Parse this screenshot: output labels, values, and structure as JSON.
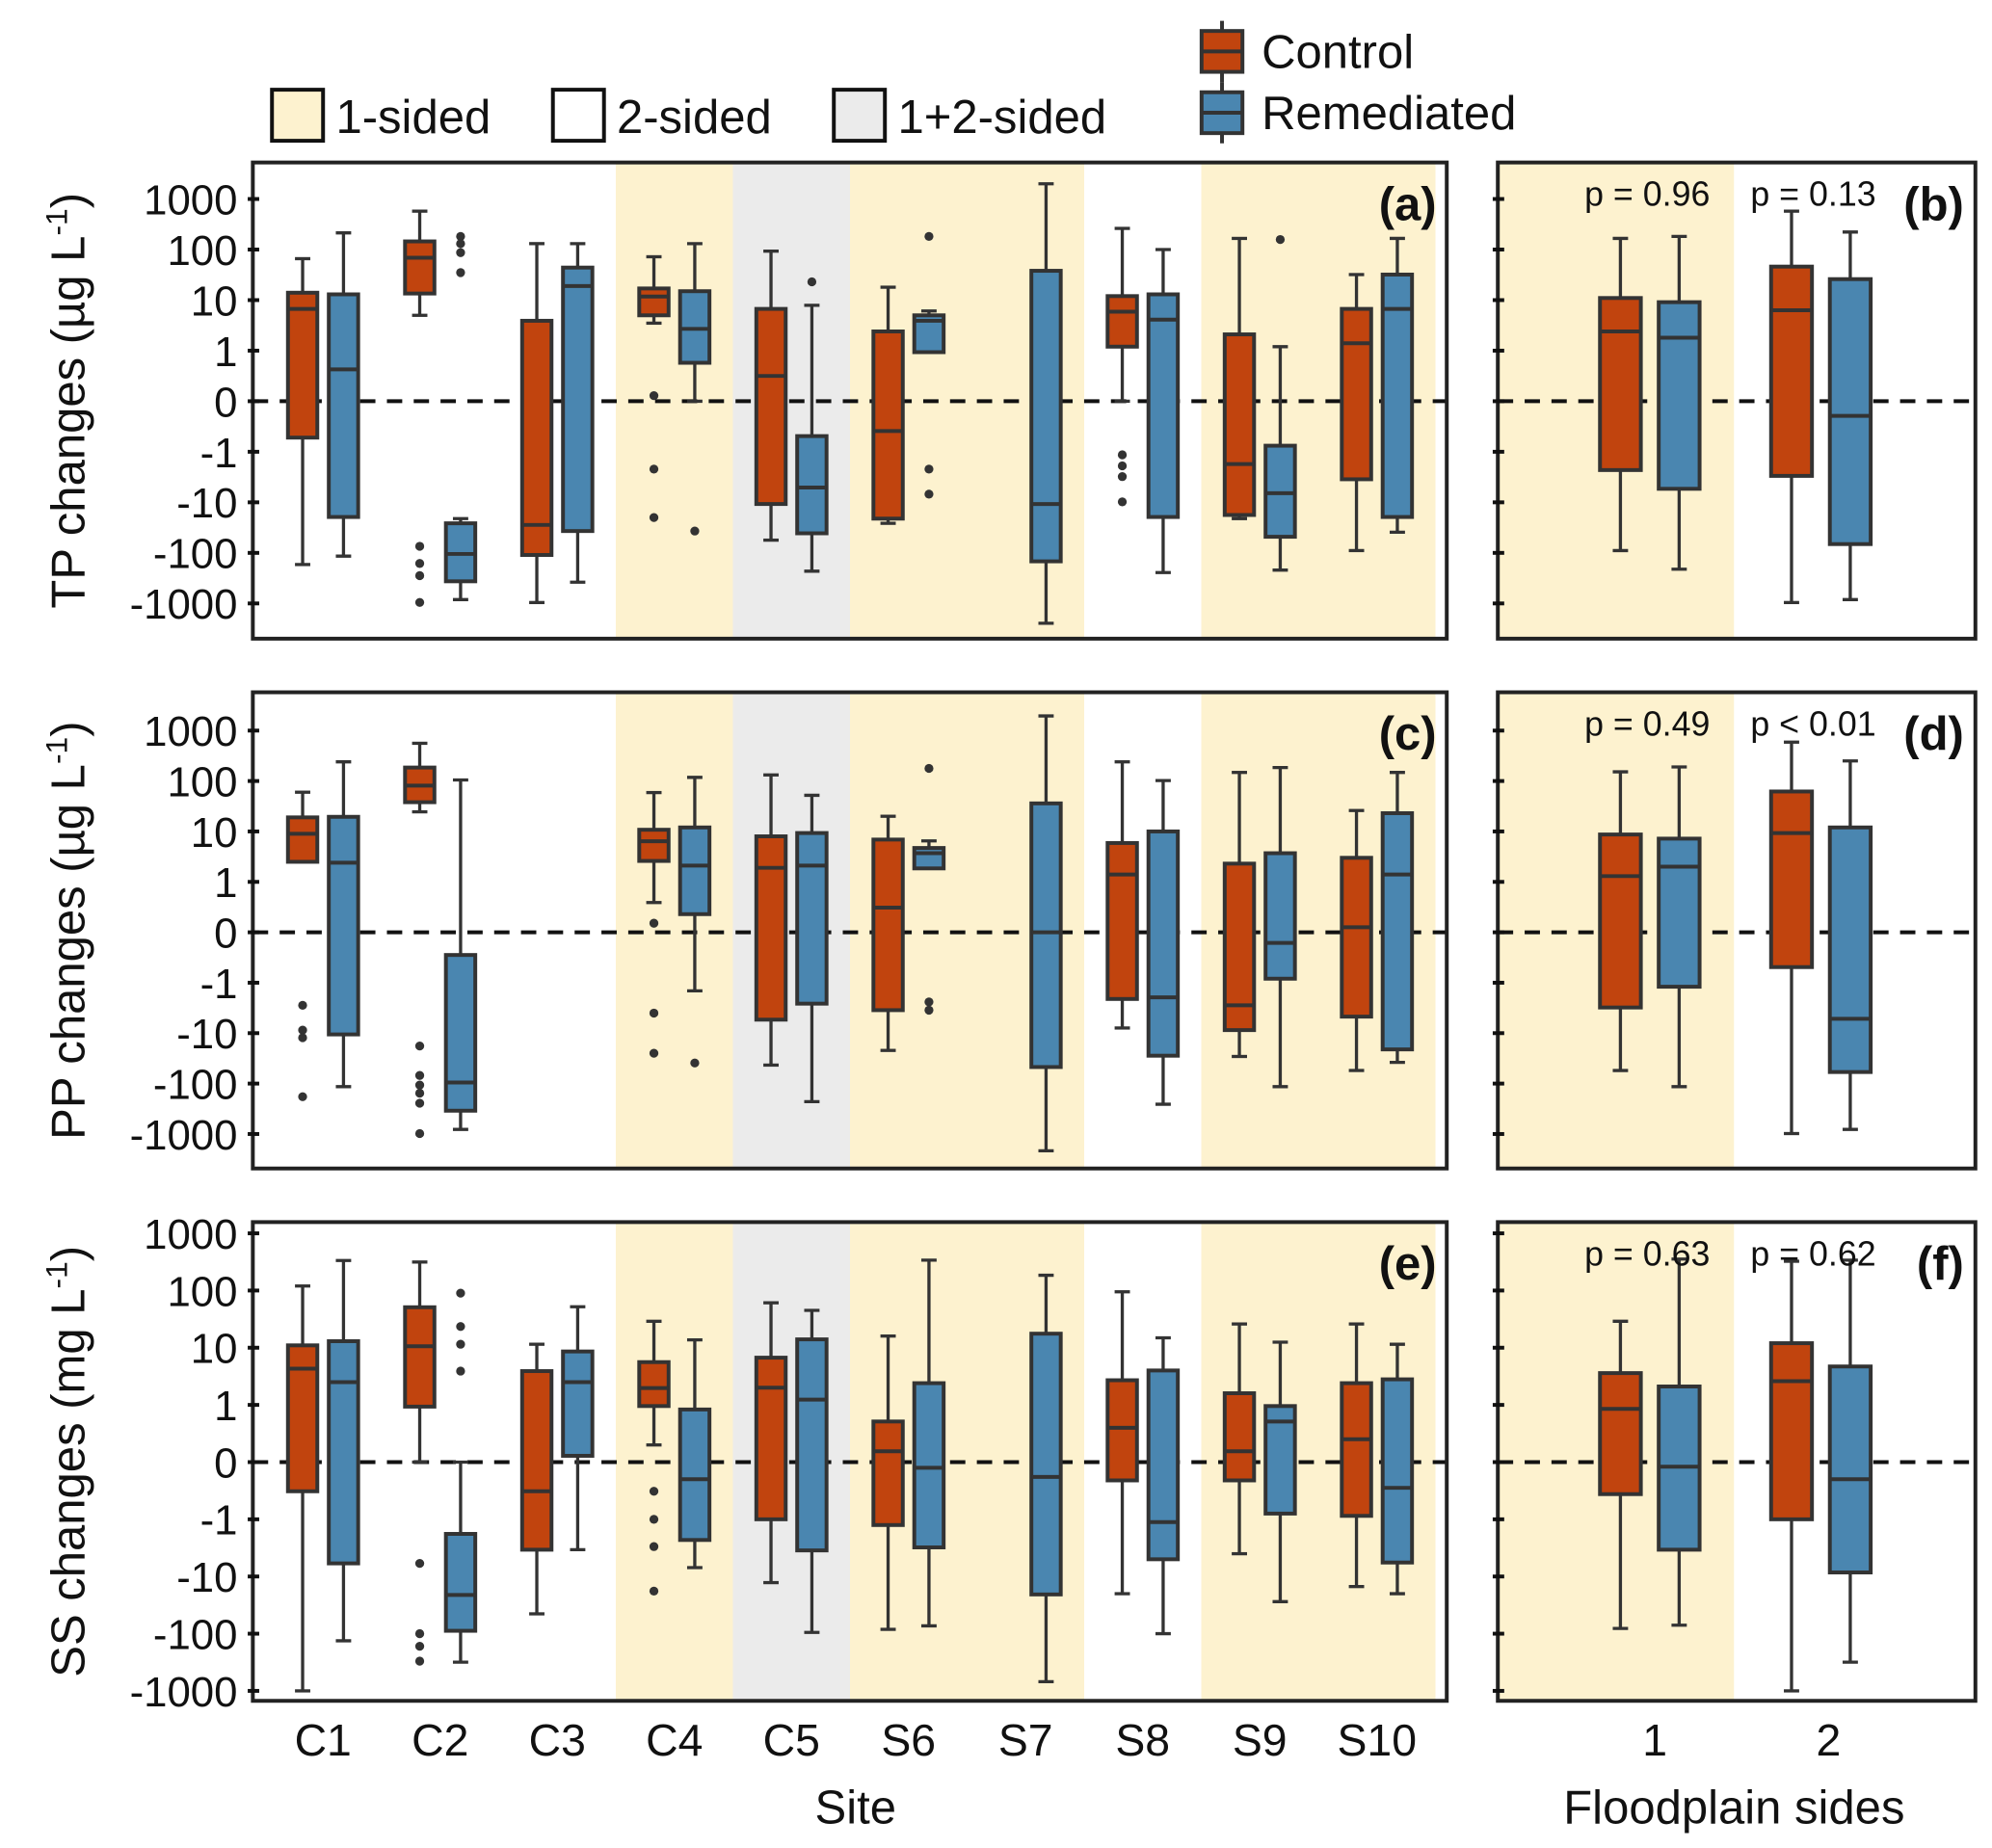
{
  "colors": {
    "control": "#c1440e",
    "remediated": "#4a86b0",
    "one_sided": "#fdf2cf",
    "two_sided": "#ffffff",
    "both_sided": "#ebebeb",
    "line": "#333333"
  },
  "legend": {
    "floodplain": [
      {
        "label": "1-sided",
        "type": "1-sided"
      },
      {
        "label": "2-sided",
        "type": "2-sided"
      },
      {
        "label": "1+2-sided",
        "type": "1+2-sided"
      }
    ],
    "treatment": [
      {
        "label": "Control",
        "key": "control"
      },
      {
        "label": "Remediated",
        "key": "remediated"
      }
    ]
  },
  "axes": {
    "site_xlabel": "Site",
    "sides_xlabel": "Floodplain sides",
    "y_ticks": [
      -1000,
      -100,
      -10,
      -1,
      0,
      1,
      10,
      100,
      1000
    ],
    "y_scale": "symlog"
  },
  "chart_data": [
    {
      "type": "box",
      "panel": "(a)",
      "ylabel": "TP changes (µg L",
      "ylabel_sup": "-1",
      "ylabel_end": ")",
      "x": [
        "C1",
        "C2",
        "C3",
        "C4",
        "C5",
        "S6",
        "S7",
        "S8",
        "S9",
        "S10"
      ],
      "site_type": [
        "2-sided",
        "2-sided",
        "2-sided",
        "1-sided",
        "1+2-sided",
        "1-sided",
        "1-sided",
        "2-sided",
        "1-sided",
        "1-sided"
      ],
      "series": [
        {
          "name": "Control",
          "key": "control",
          "boxes": [
            {
              "s": [
                -170,
                -0.72,
                6.7,
                14,
                66
              ],
              "o": []
            },
            {
              "s": [
                5,
                13.5,
                69,
                145,
                575
              ],
              "o": [
                -74,
                -162,
                -282,
                -955
              ]
            },
            {
              "s": [
                -960,
                -110,
                -28,
                3.9,
                131
              ],
              "o": []
            },
            {
              "s": [
                3.5,
                5,
                11.8,
                17,
                72
              ],
              "o": [
                0.11,
                -2.2,
                -20
              ]
            },
            {
              "s": [
                -56,
                -10.8,
                0.5,
                6.7,
                93
              ],
              "o": []
            },
            {
              "s": [
                -26,
                -21,
                -0.59,
                2.4,
                18
              ],
              "o": []
            },
            null,
            {
              "s": [
                0,
                1.2,
                5.9,
                12,
                262
              ],
              "o": [
                -1.15,
                -1.9,
                -3.1,
                -9.8
              ]
            },
            {
              "s": [
                -21,
                -17.8,
                -1.75,
                2.1,
                166
              ],
              "o": []
            },
            {
              "s": [
                -90,
                -3.5,
                1.4,
                6.7,
                32
              ],
              "o": []
            }
          ]
        },
        {
          "name": "Remediated",
          "key": "remediated",
          "boxes": [
            {
              "s": [
                -116,
                -19.5,
                0.63,
                13,
                214
              ],
              "o": []
            },
            {
              "s": [
                -840,
                -365,
                -105,
                -26,
                -21
              ],
              "o": [
                182,
                131,
                87,
                35
              ]
            },
            {
              "s": [
                -380,
                -37,
                19,
                44,
                131
              ],
              "o": []
            },
            {
              "s": [
                0,
                0.76,
                2.7,
                15,
                131
              ],
              "o": [
                -37
              ]
            },
            {
              "s": [
                -230,
                -41,
                -5.1,
                -0.69,
                7.9
              ],
              "o": [
                23
              ]
            },
            {
              "s": [
                0.97,
                0.97,
                3.9,
                5,
                6.1
              ],
              "o": [
                182,
                -2.2,
                -6.9
              ]
            },
            {
              "s": [
                -2470,
                -147,
                -10.8,
                38,
                2000
              ],
              "o": []
            },
            {
              "s": [
                -245,
                -19.5,
                4.1,
                13,
                100
              ],
              "o": []
            },
            {
              "s": [
                -219,
                -48,
                -6.6,
                -0.88,
                1.2
              ],
              "o": [
                158
              ]
            },
            {
              "s": [
                -39,
                -19.5,
                6.7,
                32,
                166
              ],
              "o": []
            }
          ]
        }
      ]
    },
    {
      "type": "box",
      "panel": "(b)",
      "x": [
        "1",
        "2"
      ],
      "site_type": [
        "1-sided",
        "2-sided"
      ],
      "p_values": [
        "p = 0.96",
        "p = 0.13"
      ],
      "series": [
        {
          "name": "Control",
          "key": "control",
          "boxes": [
            {
              "s": [
                -90,
                -2.3,
                2.4,
                11,
                166
              ],
              "o": []
            },
            {
              "s": [
                -960,
                -3,
                6.3,
                46,
                575
              ],
              "o": []
            }
          ]
        },
        {
          "name": "Remediated",
          "key": "remediated",
          "boxes": [
            {
              "s": [
                -210,
                -5.4,
                1.8,
                9.1,
                182
              ],
              "o": []
            },
            {
              "s": [
                -840,
                -67,
                -0.29,
                26,
                222
              ],
              "o": []
            }
          ]
        }
      ]
    },
    {
      "type": "box",
      "panel": "(c)",
      "ylabel": "PP changes (µg L",
      "ylabel_sup": "-1",
      "ylabel_end": ")",
      "x": [
        "C1",
        "C2",
        "C3",
        "C4",
        "C5",
        "S6",
        "S7",
        "S8",
        "S9",
        "S10"
      ],
      "site_type": [
        "2-sided",
        "2-sided",
        "2-sided",
        "1-sided",
        "1+2-sided",
        "1-sided",
        "1-sided",
        "2-sided",
        "1-sided",
        "1-sided"
      ],
      "series": [
        {
          "name": "Control",
          "key": "control",
          "boxes": [
            {
              "s": [
                2.5,
                2.5,
                9,
                19,
                60
              ],
              "o": [
                -2.8,
                -8.7,
                -12.3,
                -182
              ]
            },
            {
              "s": [
                24.5,
                38,
                81,
                185,
                560
              ],
              "o": [
                -18,
                -69,
                -107,
                -155,
                -245,
                -980
              ]
            },
            null,
            {
              "s": [
                0.59,
                2.6,
                6.4,
                10.8,
                59
              ],
              "o": [
                0.18,
                -4,
                -25
              ]
            },
            {
              "s": [
                -43,
                -5.4,
                1.9,
                8,
                132
              ],
              "o": []
            },
            {
              "s": [
                -22,
                -3.5,
                0.49,
                6.9,
                20
              ],
              "o": []
            },
            null,
            {
              "s": [
                -7.9,
                -2.1,
                1.4,
                5.9,
                240
              ],
              "o": []
            },
            {
              "s": [
                -29,
                -8.7,
                -2.8,
                2.3,
                148
              ],
              "o": []
            },
            {
              "s": [
                -55,
                -4.7,
                0.1,
                3,
                26
              ],
              "o": []
            }
          ]
        },
        {
          "name": "Remediated",
          "key": "remediated",
          "boxes": [
            {
              "s": [
                -115,
                -10.6,
                2.4,
                19.5,
                240
              ],
              "o": []
            },
            {
              "s": [
                -810,
                -345,
                -95,
                -0.45,
                105
              ],
              "o": []
            },
            null,
            {
              "s": [
                -1.45,
                0.36,
                2.1,
                12,
                118
              ],
              "o": [
                -39
              ]
            },
            {
              "s": [
                -228,
                -2.6,
                2.1,
                9.3,
                52
              ],
              "o": []
            },
            {
              "s": [
                1.85,
                1.85,
                3.7,
                4.7,
                6.5
              ],
              "o": [
                178,
                -2.4,
                -3.5
              ]
            },
            {
              "s": [
                -2150,
                -47,
                0,
                36,
                1950
              ],
              "o": []
            },
            {
              "s": [
                -257,
                -28,
                -1.95,
                10,
                102
              ],
              "o": []
            },
            {
              "s": [
                -115,
                -0.92,
                -0.21,
                3.7,
                185
              ],
              "o": []
            },
            {
              "s": [
                -38,
                -21,
                1.4,
                23,
                148
              ],
              "o": []
            }
          ]
        }
      ]
    },
    {
      "type": "box",
      "panel": "(d)",
      "x": [
        "1",
        "2"
      ],
      "site_type": [
        "1-sided",
        "2-sided"
      ],
      "p_values": [
        "p = 0.49",
        "p < 0.01"
      ],
      "series": [
        {
          "name": "Control",
          "key": "control",
          "boxes": [
            {
              "s": [
                -55,
                -3.1,
                1.3,
                8.7,
                152
              ],
              "o": []
            },
            {
              "s": [
                -980,
                -0.69,
                9.3,
                62,
                590
              ],
              "o": []
            }
          ]
        },
        {
          "name": "Remediated",
          "key": "remediated",
          "boxes": [
            {
              "s": [
                -115,
                -1.2,
                2.0,
                7.2,
                190
              ],
              "o": []
            },
            {
              "s": [
                -810,
                -59,
                -5.2,
                12,
                250
              ],
              "o": []
            }
          ]
        }
      ]
    },
    {
      "type": "box",
      "panel": "(e)",
      "ylabel": "SS changes (mg L",
      "ylabel_sup": "-1",
      "ylabel_end": ")",
      "x": [
        "C1",
        "C2",
        "C3",
        "C4",
        "C5",
        "S6",
        "S7",
        "S8",
        "S9",
        "S10"
      ],
      "site_type": [
        "2-sided",
        "2-sided",
        "2-sided",
        "1-sided",
        "1+2-sided",
        "1-sided",
        "1-sided",
        "2-sided",
        "1-sided",
        "1-sided"
      ],
      "series": [
        {
          "name": "Control",
          "key": "control",
          "boxes": [
            {
              "s": [
                -1000,
                -0.51,
                4.3,
                11,
                120
              ],
              "o": []
            },
            {
              "s": [
                0,
                0.97,
                10.6,
                51,
                315
              ],
              "o": [
                -5.9,
                -100,
                -166,
                -302
              ]
            },
            {
              "s": [
                -45,
                -3.4,
                -0.51,
                3.9,
                11.5
              ],
              "o": []
            },
            {
              "s": [
                0.3,
                0.98,
                1.97,
                5.6,
                29
              ],
              "o": [
                -0.51,
                -1,
                -3,
                -18
              ]
            },
            {
              "s": [
                -12.8,
                -1,
                2,
                6.7,
                61
              ],
              "o": []
            },
            {
              "s": [
                -84,
                -1.26,
                0.19,
                0.71,
                16
              ],
              "o": []
            },
            null,
            {
              "s": [
                -20,
                -0.32,
                0.6,
                2.7,
                95
              ],
              "o": []
            },
            {
              "s": [
                -4,
                -0.32,
                0.19,
                1.6,
                26
              ],
              "o": []
            },
            {
              "s": [
                -15,
                -0.94,
                0.4,
                2.4,
                26
              ],
              "o": []
            }
          ]
        },
        {
          "name": "Remediated",
          "key": "remediated",
          "boxes": [
            {
              "s": [
                -133,
                -5.9,
                2.5,
                13,
                335
              ],
              "o": []
            },
            {
              "s": [
                -315,
                -89,
                -21,
                -1.8,
                0
              ],
              "o": [
                90,
                23.5,
                11.5,
                3.9
              ]
            },
            {
              "s": [
                -3.4,
                0.11,
                2.5,
                8.6,
                52
              ],
              "o": []
            },
            {
              "s": [
                -7,
                -2.3,
                -0.3,
                0.92,
                13.7
              ],
              "o": []
            },
            {
              "s": [
                -95,
                -3.5,
                1.24,
                14,
                45
              ],
              "o": []
            },
            {
              "s": [
                -73,
                -3.1,
                -0.1,
                2.4,
                340
              ],
              "o": []
            },
            {
              "s": [
                -690,
                -20.6,
                -0.26,
                17.6,
                185
              ],
              "o": []
            },
            {
              "s": [
                -100,
                -5,
                -1.12,
                4,
                14.9
              ],
              "o": []
            },
            {
              "s": [
                -27.5,
                -0.9,
                0.71,
                0.98,
                12.5
              ],
              "o": []
            },
            {
              "s": [
                -20,
                -5.7,
                -0.45,
                2.8,
                11.5
              ],
              "o": []
            }
          ]
        }
      ]
    },
    {
      "type": "box",
      "panel": "(f)",
      "x": [
        "1",
        "2"
      ],
      "site_type": [
        "1-sided",
        "2-sided"
      ],
      "p_values": [
        "p = 0.63",
        "p = 0.62"
      ],
      "series": [
        {
          "name": "Control",
          "key": "control",
          "boxes": [
            {
              "s": [
                -81,
                -0.56,
                0.93,
                3.6,
                29
              ],
              "o": []
            },
            {
              "s": [
                -1000,
                -1,
                2.6,
                12,
                325
              ],
              "o": []
            }
          ]
        },
        {
          "name": "Remediated",
          "key": "remediated",
          "boxes": [
            {
              "s": [
                -71,
                -3.4,
                -0.08,
                2.1,
                355
              ],
              "o": []
            },
            {
              "s": [
                -315,
                -8.5,
                -0.3,
                4.7,
                340
              ],
              "o": []
            }
          ]
        }
      ]
    }
  ]
}
